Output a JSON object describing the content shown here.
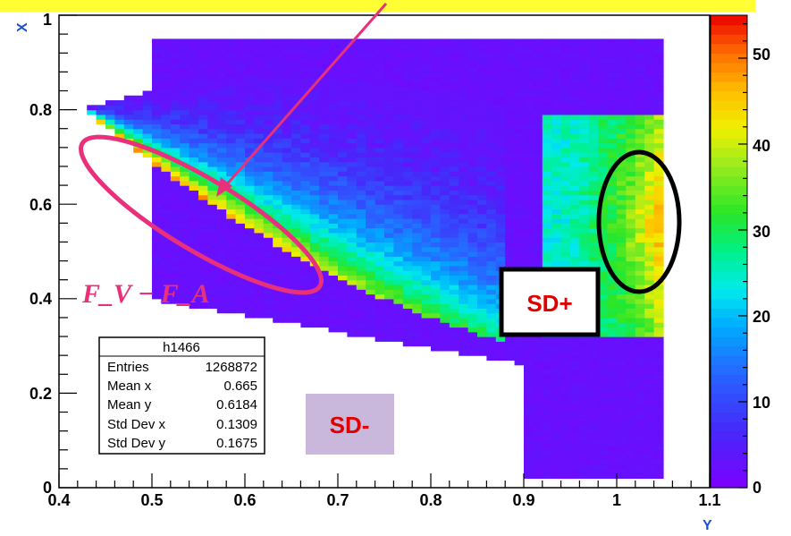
{
  "chart_data": {
    "type": "heatmap",
    "title": "",
    "xlabel": "Y",
    "ylabel": "X",
    "xlim": [
      0.4,
      1.1
    ],
    "ylim": [
      0,
      1
    ],
    "zlim": [
      0,
      55
    ],
    "x_ticks": [
      "0.4",
      "0.5",
      "0.6",
      "0.7",
      "0.8",
      "0.9",
      "1",
      "1.1"
    ],
    "y_ticks": [
      "0",
      "0.2",
      "0.4",
      "0.6",
      "0.8",
      "1"
    ],
    "colorbar_ticks": [
      "0",
      "10",
      "20",
      "30",
      "40",
      "50"
    ],
    "grid": false,
    "colorbar": "right",
    "stats_box": {
      "title": "h1466",
      "rows": [
        {
          "label": "Entries",
          "value": "1268872"
        },
        {
          "label": "Mean x",
          "value": "0.665"
        },
        {
          "label": "Mean y",
          "value": "0.6184"
        },
        {
          "label": "Std Dev x",
          "value": "0.1309"
        },
        {
          "label": "Std Dev y",
          "value": "0.1675"
        }
      ]
    },
    "annotations": {
      "fv_fa": "F_V − F_A",
      "sd_plus": "SD+",
      "sd_minus": "SD-"
    },
    "regions": {
      "ib_band": {
        "y_min": 0.42,
        "y_max": 0.7,
        "x_top_at_min": 0.8,
        "peak": 52
      },
      "sd_minus_plateau": {
        "y_min": 0.42,
        "y_max": 1.05,
        "x_max": 0.95,
        "value": 2
      },
      "sd_plus_block": {
        "y_min": 0.92,
        "y_max": 1.05,
        "x_min": 0.32,
        "x_max": 0.79,
        "peak": 48
      }
    },
    "colors": {
      "arrow": "#e8317a",
      "ellipse_pink": "#e8317a",
      "ellipse_black": "#000000",
      "sd_minus_box": "#c9b8dc",
      "banner": "#ffff33",
      "axis_title": "#1a4fd6"
    }
  }
}
